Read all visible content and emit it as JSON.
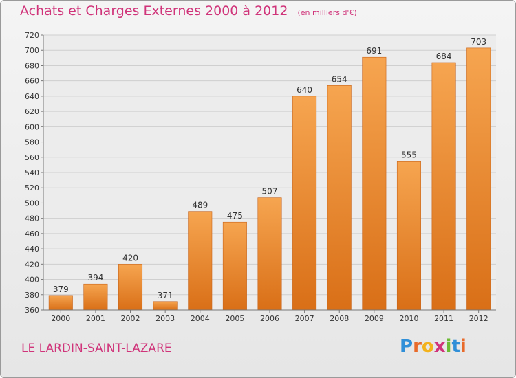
{
  "header": {
    "title": "Achats et Charges Externes 2000 à 2012",
    "unit": "(en milliers d'€)"
  },
  "footer": {
    "commune": "LE LARDIN-SAINT-LAZARE",
    "logo": "Proxiti"
  },
  "colors": {
    "bar_top": "#f6a550",
    "bar_bottom": "#d96f17",
    "title": "#d0347a"
  },
  "chart_data": {
    "type": "bar",
    "title": "Achats et Charges Externes 2000 à 2012",
    "subtitle": "(en milliers d'€)",
    "categories": [
      "2000",
      "2001",
      "2002",
      "2003",
      "2004",
      "2005",
      "2006",
      "2007",
      "2008",
      "2009",
      "2010",
      "2011",
      "2012"
    ],
    "values": [
      379,
      394,
      420,
      371,
      489,
      475,
      507,
      640,
      654,
      691,
      555,
      684,
      703
    ],
    "ylim": [
      360,
      720
    ],
    "yticks": [
      360,
      380,
      400,
      420,
      440,
      460,
      480,
      500,
      520,
      540,
      560,
      580,
      600,
      620,
      640,
      660,
      680,
      700,
      720
    ],
    "grid": true,
    "legend": "none",
    "data_labels": true
  }
}
